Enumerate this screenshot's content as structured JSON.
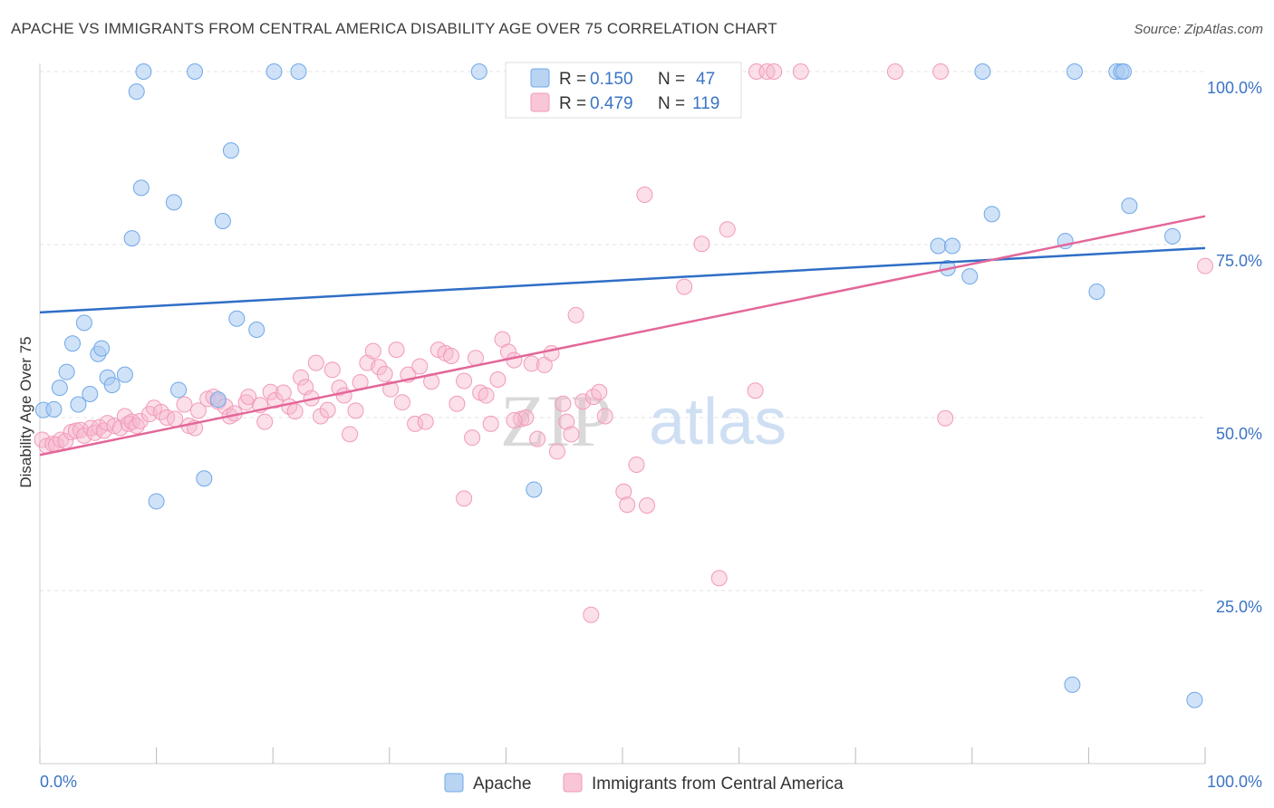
{
  "title": "APACHE VS IMMIGRANTS FROM CENTRAL AMERICA DISABILITY AGE OVER 75 CORRELATION CHART",
  "source": "Source: ZipAtlas.com",
  "watermark": {
    "zip": "ZIP",
    "atlas": "atlas"
  },
  "colors": {
    "apache": "#6fa8e8",
    "apache_line": "#2f6ec6",
    "immigrants": "#f29ab9",
    "immigrants_line": "#e3679a",
    "tick_text": "#3b74c4"
  },
  "chart_data": {
    "type": "scatter",
    "xlabel": "",
    "ylabel": "Disability Age Over 75",
    "xlim": [
      0,
      100
    ],
    "ylim": [
      0,
      105
    ],
    "x_tick_labels": [
      "0.0%",
      "100.0%"
    ],
    "y_ticks": [
      25,
      50,
      75,
      100
    ],
    "y_tick_labels": [
      "25.0%",
      "50.0%",
      "75.0%",
      "100.0%"
    ],
    "grid": true,
    "legend_top": [
      {
        "r_label": "R =",
        "r_value": "0.150",
        "n_label": "N =",
        "n_value": "47"
      },
      {
        "r_label": "R =",
        "r_value": "0.479",
        "n_label": "N =",
        "n_value": "119"
      }
    ],
    "legend_position": "top-center",
    "series": [
      {
        "name": "Apache",
        "trend": [
          [
            0,
            65.2
          ],
          [
            100,
            74.5
          ]
        ],
        "points": [
          [
            0.3,
            51.1
          ],
          [
            1.2,
            51.2
          ],
          [
            1.7,
            54.3
          ],
          [
            2.3,
            56.6
          ],
          [
            2.8,
            60.7
          ],
          [
            3.3,
            51.9
          ],
          [
            3.8,
            63.7
          ],
          [
            4.3,
            53.4
          ],
          [
            5.0,
            59.2
          ],
          [
            5.3,
            60.0
          ],
          [
            5.8,
            55.8
          ],
          [
            6.2,
            54.7
          ],
          [
            7.3,
            56.2
          ],
          [
            7.9,
            75.9
          ],
          [
            8.3,
            97.1
          ],
          [
            8.7,
            83.2
          ],
          [
            8.9,
            100
          ],
          [
            10.0,
            37.9
          ],
          [
            11.5,
            81.1
          ],
          [
            11.9,
            54.0
          ],
          [
            13.3,
            100
          ],
          [
            14.1,
            41.2
          ],
          [
            15.3,
            52.6
          ],
          [
            15.7,
            78.4
          ],
          [
            16.4,
            88.6
          ],
          [
            16.9,
            64.3
          ],
          [
            18.6,
            62.7
          ],
          [
            20.1,
            100
          ],
          [
            22.2,
            100
          ],
          [
            37.7,
            100
          ],
          [
            42.4,
            39.6
          ],
          [
            77.1,
            74.8
          ],
          [
            77.9,
            71.6
          ],
          [
            78.3,
            74.8
          ],
          [
            79.8,
            70.4
          ],
          [
            80.9,
            100
          ],
          [
            81.7,
            79.4
          ],
          [
            88.0,
            75.5
          ],
          [
            88.6,
            11.4
          ],
          [
            88.8,
            100
          ],
          [
            90.7,
            68.2
          ],
          [
            92.4,
            100
          ],
          [
            92.8,
            100
          ],
          [
            93.0,
            100
          ],
          [
            93.5,
            80.6
          ],
          [
            97.2,
            76.2
          ],
          [
            99.1,
            9.2
          ]
        ]
      },
      {
        "name": "Immigrants from Central America",
        "trend": [
          [
            0,
            44.6
          ],
          [
            100,
            79.1
          ]
        ],
        "points": [
          [
            0.2,
            46.8
          ],
          [
            0.6,
            45.9
          ],
          [
            1.1,
            46.2
          ],
          [
            1.4,
            46.1
          ],
          [
            1.8,
            46.8
          ],
          [
            2.2,
            46.6
          ],
          [
            2.7,
            47.9
          ],
          [
            3.1,
            48.1
          ],
          [
            3.5,
            48.2
          ],
          [
            3.8,
            47.4
          ],
          [
            4.4,
            48.5
          ],
          [
            4.7,
            47.8
          ],
          [
            5.1,
            48.6
          ],
          [
            5.5,
            48.1
          ],
          [
            5.8,
            49.2
          ],
          [
            6.4,
            48.8
          ],
          [
            6.9,
            48.5
          ],
          [
            7.3,
            50.2
          ],
          [
            7.6,
            49.1
          ],
          [
            7.9,
            49.4
          ],
          [
            8.3,
            48.8
          ],
          [
            8.6,
            49.5
          ],
          [
            9.4,
            50.5
          ],
          [
            9.8,
            51.4
          ],
          [
            10.4,
            50.8
          ],
          [
            10.9,
            50.0
          ],
          [
            11.6,
            49.8
          ],
          [
            12.4,
            51.9
          ],
          [
            12.8,
            48.8
          ],
          [
            13.3,
            48.5
          ],
          [
            13.6,
            51.0
          ],
          [
            14.4,
            52.7
          ],
          [
            14.9,
            53.0
          ],
          [
            15.3,
            52.3
          ],
          [
            15.9,
            51.6
          ],
          [
            16.3,
            50.2
          ],
          [
            16.7,
            50.6
          ],
          [
            17.7,
            52.2
          ],
          [
            17.9,
            53.0
          ],
          [
            18.9,
            51.8
          ],
          [
            19.3,
            49.4
          ],
          [
            19.8,
            53.7
          ],
          [
            20.2,
            52.5
          ],
          [
            20.9,
            53.6
          ],
          [
            21.4,
            51.6
          ],
          [
            21.9,
            50.9
          ],
          [
            22.4,
            55.8
          ],
          [
            22.8,
            54.4
          ],
          [
            23.3,
            52.8
          ],
          [
            23.7,
            57.9
          ],
          [
            24.1,
            50.2
          ],
          [
            24.7,
            51.1
          ],
          [
            25.1,
            56.9
          ],
          [
            25.7,
            54.3
          ],
          [
            26.1,
            53.2
          ],
          [
            26.6,
            47.6
          ],
          [
            27.1,
            51.0
          ],
          [
            27.5,
            55.1
          ],
          [
            28.1,
            57.9
          ],
          [
            28.6,
            59.6
          ],
          [
            29.1,
            57.3
          ],
          [
            29.6,
            56.3
          ],
          [
            30.1,
            54.1
          ],
          [
            30.6,
            59.8
          ],
          [
            31.1,
            52.2
          ],
          [
            31.6,
            56.2
          ],
          [
            32.2,
            49.1
          ],
          [
            32.6,
            57.4
          ],
          [
            33.1,
            49.4
          ],
          [
            33.6,
            55.2
          ],
          [
            34.2,
            59.8
          ],
          [
            34.8,
            59.3
          ],
          [
            35.3,
            58.9
          ],
          [
            35.8,
            52.0
          ],
          [
            36.4,
            55.3
          ],
          [
            37.1,
            47.1
          ],
          [
            37.4,
            58.6
          ],
          [
            37.8,
            53.6
          ],
          [
            38.3,
            53.2
          ],
          [
            38.7,
            49.1
          ],
          [
            39.3,
            55.5
          ],
          [
            39.7,
            61.3
          ],
          [
            40.2,
            59.5
          ],
          [
            40.7,
            58.3
          ],
          [
            41.3,
            49.8
          ],
          [
            41.7,
            50.0
          ],
          [
            42.2,
            57.8
          ],
          [
            42.7,
            46.9
          ],
          [
            43.3,
            57.6
          ],
          [
            43.9,
            59.3
          ],
          [
            44.4,
            45.1
          ],
          [
            44.9,
            52.0
          ],
          [
            45.2,
            49.4
          ],
          [
            45.6,
            47.6
          ],
          [
            46.0,
            64.8
          ],
          [
            46.6,
            52.3
          ],
          [
            47.5,
            53.0
          ],
          [
            48.0,
            53.7
          ],
          [
            48.5,
            50.2
          ],
          [
            50.1,
            39.3
          ],
          [
            50.4,
            37.4
          ],
          [
            51.2,
            43.2
          ],
          [
            52.1,
            37.3
          ],
          [
            51.9,
            82.2
          ],
          [
            55.3,
            68.9
          ],
          [
            56.8,
            75.1
          ],
          [
            58.3,
            26.8
          ],
          [
            59.0,
            77.2
          ],
          [
            61.4,
            53.9
          ],
          [
            61.5,
            100
          ],
          [
            62.4,
            100
          ],
          [
            63.0,
            100
          ],
          [
            65.3,
            100
          ],
          [
            73.4,
            100
          ],
          [
            77.3,
            100
          ],
          [
            77.7,
            49.9
          ],
          [
            100,
            71.9
          ],
          [
            36.4,
            38.3
          ],
          [
            47.3,
            21.5
          ],
          [
            40.7,
            49.6
          ]
        ]
      }
    ]
  },
  "bottom_legend": [
    {
      "label": "Apache"
    },
    {
      "label": "Immigrants from Central America"
    }
  ]
}
